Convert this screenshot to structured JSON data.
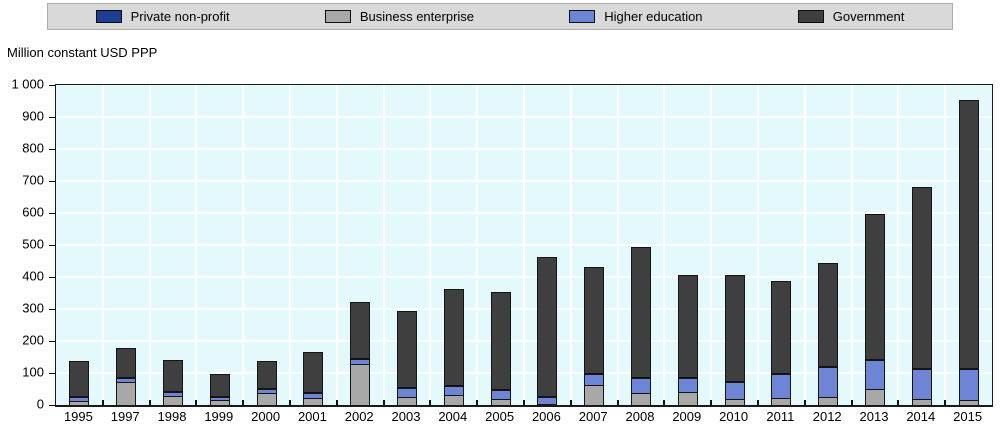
{
  "legend": {
    "items": [
      {
        "label": "Private non-profit",
        "color": "#1e3e94"
      },
      {
        "label": "Business enterprise",
        "color": "#a8a8a8"
      },
      {
        "label": "Higher education",
        "color": "#6e85d6"
      },
      {
        "label": "Government",
        "color": "#3f3f3f"
      }
    ]
  },
  "chart_data": {
    "type": "bar",
    "stacked": true,
    "title": "",
    "ylabel": "Million constant USD PPP",
    "xlabel": "",
    "ylim": [
      0,
      1000
    ],
    "ytick_step": 100,
    "ytick_labels": [
      "0",
      "100",
      "200",
      "300",
      "400",
      "500",
      "600",
      "700",
      "800",
      "900",
      "1 000"
    ],
    "grid": "on",
    "plot_background": "#e3f9fb",
    "legend_position": "top",
    "categories": [
      "1995",
      "1997",
      "1998",
      "1999",
      "2000",
      "2001",
      "2002",
      "2003",
      "2004",
      "2005",
      "2006",
      "2007",
      "2008",
      "2009",
      "2010",
      "2011",
      "2012",
      "2013",
      "2014",
      "2015"
    ],
    "series": [
      {
        "name": "Business enterprise",
        "color": "#a8a8a8",
        "stack_position": "bottom",
        "values": [
          12,
          72,
          27,
          15,
          36,
          22,
          129,
          26,
          32,
          20,
          1,
          63,
          36,
          41,
          20,
          22,
          25,
          51,
          18,
          15
        ]
      },
      {
        "name": "Higher education",
        "color": "#6e85d6",
        "stack_position": "second",
        "values": [
          12,
          14,
          13,
          9,
          13,
          15,
          16,
          28,
          28,
          28,
          22,
          35,
          49,
          42,
          52,
          76,
          94,
          91,
          96,
          96
        ]
      },
      {
        "name": "Private non-profit",
        "color": "#1e3e94",
        "stack_position": "third",
        "values": [
          5,
          2,
          3,
          2,
          2,
          2,
          2,
          1,
          1,
          1,
          4,
          1,
          1,
          1,
          1,
          1,
          1,
          1,
          1,
          1
        ]
      },
      {
        "name": "Government",
        "color": "#3f3f3f",
        "stack_position": "top",
        "values": [
          109,
          90,
          97,
          70,
          84,
          126,
          173,
          238,
          299,
          301,
          435,
          329,
          406,
          320,
          330,
          288,
          321,
          452,
          563,
          838
        ]
      }
    ]
  }
}
